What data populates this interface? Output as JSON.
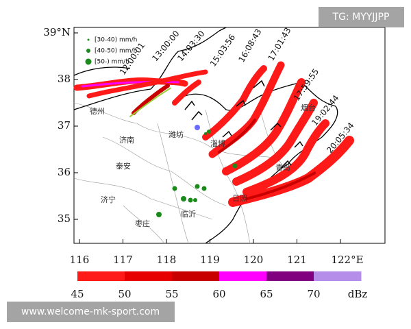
{
  "map": {
    "lat_ticks": [
      {
        "value": 39,
        "label": "39°N"
      },
      38,
      37,
      36,
      35
    ],
    "lon_ticks": [
      116,
      117,
      118,
      119,
      120,
      121,
      {
        "value": 122,
        "label": "122°E"
      }
    ],
    "legend": [
      "[30-40) mm/h",
      "[40-50) mm/h",
      "[50-) mm/h"
    ],
    "times": [
      "12:00:01",
      "13:00:00",
      "14:03:30",
      "15:03:56",
      "16:08:43",
      "17:01:43",
      "17:59:55",
      "19:02:44",
      "20:05:34"
    ],
    "cities": [
      "德州",
      "济南",
      "泰安",
      "济宁",
      "枣庄",
      "临沂",
      "日照",
      "潍坊",
      "淄博",
      "烟台",
      "青岛"
    ]
  },
  "colorbar": {
    "clim": [
      45,
      75
    ],
    "ticks": [
      45,
      50,
      55,
      60,
      65,
      70
    ],
    "unit": "dBz",
    "colors": [
      "#ff1a1a",
      "#e60000",
      "#c80000",
      "#ff00ff",
      "#800080",
      "#b48ee8"
    ]
  },
  "watermarks": [
    "TG: MYYJJPP",
    "www.welcome-mk-sport.com"
  ]
}
